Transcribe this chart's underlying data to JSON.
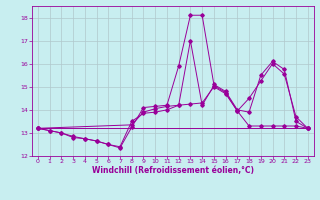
{
  "xlabel": "Windchill (Refroidissement éolien,°C)",
  "xlim": [
    -0.5,
    23.5
  ],
  "ylim": [
    12,
    18.5
  ],
  "xticks": [
    0,
    1,
    2,
    3,
    4,
    5,
    6,
    7,
    8,
    9,
    10,
    11,
    12,
    13,
    14,
    15,
    16,
    17,
    18,
    19,
    20,
    21,
    22,
    23
  ],
  "yticks": [
    12,
    13,
    14,
    15,
    16,
    17,
    18
  ],
  "background_color": "#c8eef0",
  "line_color": "#990099",
  "grid_color": "#b0c8cc",
  "series": [
    {
      "x": [
        0,
        1,
        2,
        3,
        4,
        5,
        6,
        7,
        8,
        9,
        10,
        11,
        12,
        13,
        14,
        15,
        16,
        17,
        18,
        19,
        20,
        21,
        22,
        23
      ],
      "y": [
        13.2,
        13.1,
        13.0,
        12.8,
        12.75,
        12.65,
        12.5,
        12.35,
        13.25,
        14.1,
        14.15,
        14.2,
        15.9,
        18.1,
        18.1,
        15.1,
        14.8,
        14.0,
        13.9,
        15.5,
        16.1,
        15.75,
        13.5,
        13.2
      ]
    },
    {
      "x": [
        0,
        1,
        2,
        3,
        4,
        5,
        6,
        7,
        8,
        9,
        10,
        11,
        12,
        13,
        14,
        15,
        16,
        17,
        18,
        19,
        20,
        21,
        22,
        23
      ],
      "y": [
        13.2,
        13.1,
        13.0,
        12.85,
        12.75,
        12.65,
        12.5,
        12.4,
        13.5,
        13.85,
        13.9,
        14.0,
        14.2,
        17.0,
        14.2,
        15.05,
        14.75,
        13.95,
        14.5,
        15.25,
        16.0,
        15.55,
        13.7,
        13.2
      ]
    },
    {
      "x": [
        0,
        8,
        9,
        10,
        11,
        12,
        13,
        14,
        15,
        16,
        17,
        18,
        19,
        20,
        21,
        22,
        23
      ],
      "y": [
        13.2,
        13.35,
        13.9,
        14.05,
        14.15,
        14.2,
        14.25,
        14.3,
        15.0,
        14.7,
        13.95,
        13.3,
        13.3,
        13.3,
        13.3,
        13.3,
        13.2
      ]
    },
    {
      "x": [
        0,
        23
      ],
      "y": [
        13.2,
        13.2
      ]
    }
  ],
  "figsize": [
    3.2,
    2.0
  ],
  "dpi": 100
}
